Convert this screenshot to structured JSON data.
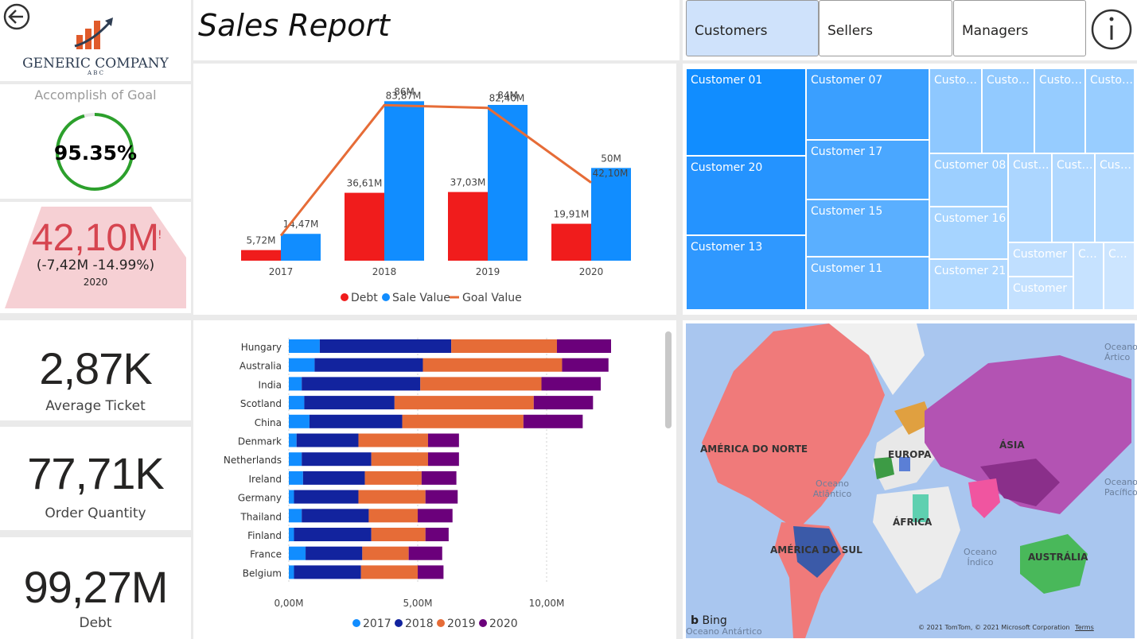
{
  "header": {
    "title": "Sales Report",
    "nav": [
      {
        "label": "Customers",
        "active": true
      },
      {
        "label": "Sellers",
        "active": false
      },
      {
        "label": "Managers",
        "active": false
      }
    ]
  },
  "logo": {
    "name": "GENERIC COMPANY",
    "sub": "A B C"
  },
  "goal": {
    "title": "Accomplish of Goal",
    "value_text": "95.35%",
    "value": 0.9535,
    "color": "#2ca02c"
  },
  "debt_card": {
    "value": "42,10M",
    "alert": "!",
    "delta": "(-7,42M -14.99%)",
    "year": "2020"
  },
  "kpis": [
    {
      "value": "2,87K",
      "label": "Average Ticket"
    },
    {
      "value": "77,71K",
      "label": "Order Quantity"
    },
    {
      "value": "99,27M",
      "label": "Debt"
    }
  ],
  "colors": {
    "debt": "#f01c1c",
    "sale": "#118dff",
    "goal": "#e66c37",
    "y2017": "#118dff",
    "y2018": "#12239e",
    "y2019": "#e66c37",
    "y2020": "#6b007b"
  },
  "chart_data": [
    {
      "type": "bar",
      "categories": [
        "2017",
        "2018",
        "2019",
        "2020"
      ],
      "series": [
        {
          "name": "Debt",
          "values": [
            5.72,
            36.61,
            37.03,
            19.91
          ],
          "labels": [
            "5,72M",
            "36,61M",
            "37,03M",
            "19,91M"
          ]
        },
        {
          "name": "Sale Value",
          "values": [
            14.47,
            86,
            84,
            50
          ],
          "labels": [
            "14,47M",
            "86M",
            "84M",
            "50M"
          ]
        },
        {
          "name": "Goal Value",
          "values": [
            13.5,
            83.87,
            82.4,
            42.1
          ],
          "labels": [
            "",
            "83,87M",
            "82,40M",
            "42,10M"
          ]
        }
      ],
      "ylim": [
        0,
        90
      ]
    },
    {
      "type": "bar",
      "orientation": "horizontal",
      "stacked": true,
      "categories": [
        "Hungary",
        "Australia",
        "India",
        "Scotland",
        "China",
        "Denmark",
        "Netherlands",
        "Ireland",
        "Germany",
        "Thailand",
        "Finland",
        "France",
        "Belgium"
      ],
      "series": [
        {
          "name": "2017",
          "values": [
            1.2,
            1.0,
            0.5,
            0.6,
            0.8,
            0.3,
            0.5,
            0.55,
            0.2,
            0.5,
            0.2,
            0.65,
            0.2
          ]
        },
        {
          "name": "2018",
          "values": [
            5.1,
            4.2,
            4.6,
            3.5,
            3.6,
            2.4,
            2.7,
            2.4,
            2.5,
            2.6,
            3.0,
            2.2,
            2.6
          ]
        },
        {
          "name": "2019",
          "values": [
            4.1,
            5.4,
            4.7,
            5.4,
            4.7,
            2.7,
            2.2,
            2.2,
            2.6,
            1.9,
            2.1,
            1.8,
            2.2
          ]
        },
        {
          "name": "2020",
          "values": [
            2.1,
            1.8,
            2.3,
            2.3,
            2.3,
            1.2,
            1.2,
            1.35,
            1.25,
            1.35,
            0.9,
            1.3,
            1.0
          ]
        }
      ],
      "x_ticks": [
        "0,00M",
        "5,00M",
        "10,00M"
      ],
      "xlim": [
        0,
        12.5
      ]
    }
  ],
  "treemap": [
    "Customer 01",
    "Customer 07",
    "Customer 20",
    "Customer 17",
    "Customer 15",
    "Customer 13",
    "Customer 11",
    "Customer 08",
    "Customer 16",
    "Customer 21",
    "Customer",
    "Customer",
    "Customer",
    "Customer",
    "Customer",
    "Customer",
    "Customer",
    "Customer",
    "Customer",
    "Customer",
    "Customer"
  ],
  "map": {
    "labels": [
      "AMÉRICA DO NORTE",
      "EUROPA",
      "ÁSIA",
      "ÁFRICA",
      "AMÉRICA DO SUL",
      "AUSTRÁLIA"
    ],
    "oceans": [
      "Oceano Atlântico",
      "Oceano Índico",
      "Oceano Ártico",
      "Oceano Pacífico",
      "Oceano Antártico"
    ],
    "provider": "Bing",
    "credit": "© 2021 TomTom, © 2021 Microsoft Corporation",
    "terms": "Terms"
  }
}
